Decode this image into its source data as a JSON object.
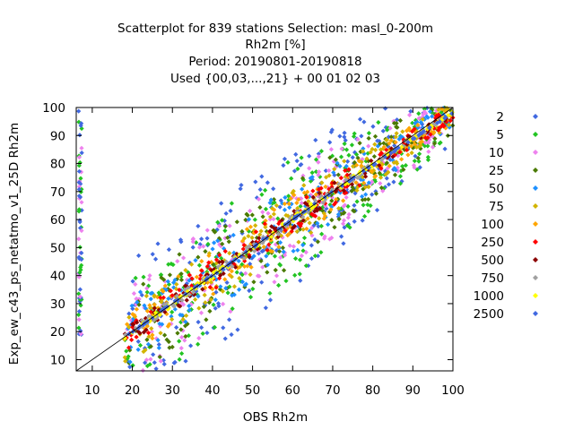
{
  "chart_data": {
    "type": "scatter",
    "title_lines": [
      "Scatterplot for  839 stations Selection: masl_0-200m",
      "Rh2m [%]",
      "Period: 20190801-20190818",
      "Used {00,03,...,21} + 00 01 02 03"
    ],
    "xlabel": "OBS Rh2m",
    "ylabel": "Exp_ew_c43_ps_netatmo_v1_25D Rh2m",
    "xlim": [
      6,
      100
    ],
    "ylim": [
      6,
      100
    ],
    "xticks": [
      10,
      20,
      30,
      40,
      50,
      60,
      70,
      80,
      90,
      100
    ],
    "yticks": [
      10,
      20,
      30,
      40,
      50,
      60,
      70,
      80,
      90,
      100
    ],
    "diagonal": true,
    "legend_position": "right",
    "legend_title": "",
    "density_classes": [
      {
        "label": "2",
        "color": "#4169e1",
        "halfwidth": 26
      },
      {
        "label": "5",
        "color": "#22c422",
        "halfwidth": 22
      },
      {
        "label": "10",
        "color": "#ee82ee",
        "halfwidth": 19
      },
      {
        "label": "25",
        "color": "#4a7a00",
        "halfwidth": 16
      },
      {
        "label": "50",
        "color": "#1e90ff",
        "halfwidth": 12.5
      },
      {
        "label": "75",
        "color": "#d2b400",
        "halfwidth": 10
      },
      {
        "label": "100",
        "color": "#ffa500",
        "halfwidth": 8.5
      },
      {
        "label": "250",
        "color": "#ff0000",
        "halfwidth": 6
      },
      {
        "label": "500",
        "color": "#8b0000",
        "halfwidth": 3.2
      },
      {
        "label": "750",
        "color": "#a0a0a0",
        "halfwidth": 1.8
      },
      {
        "label": "1000",
        "color": "#ffff00",
        "halfwidth": 1.0
      },
      {
        "label": "2500",
        "color": "#4169e1",
        "halfwidth": 0.4
      }
    ]
  }
}
